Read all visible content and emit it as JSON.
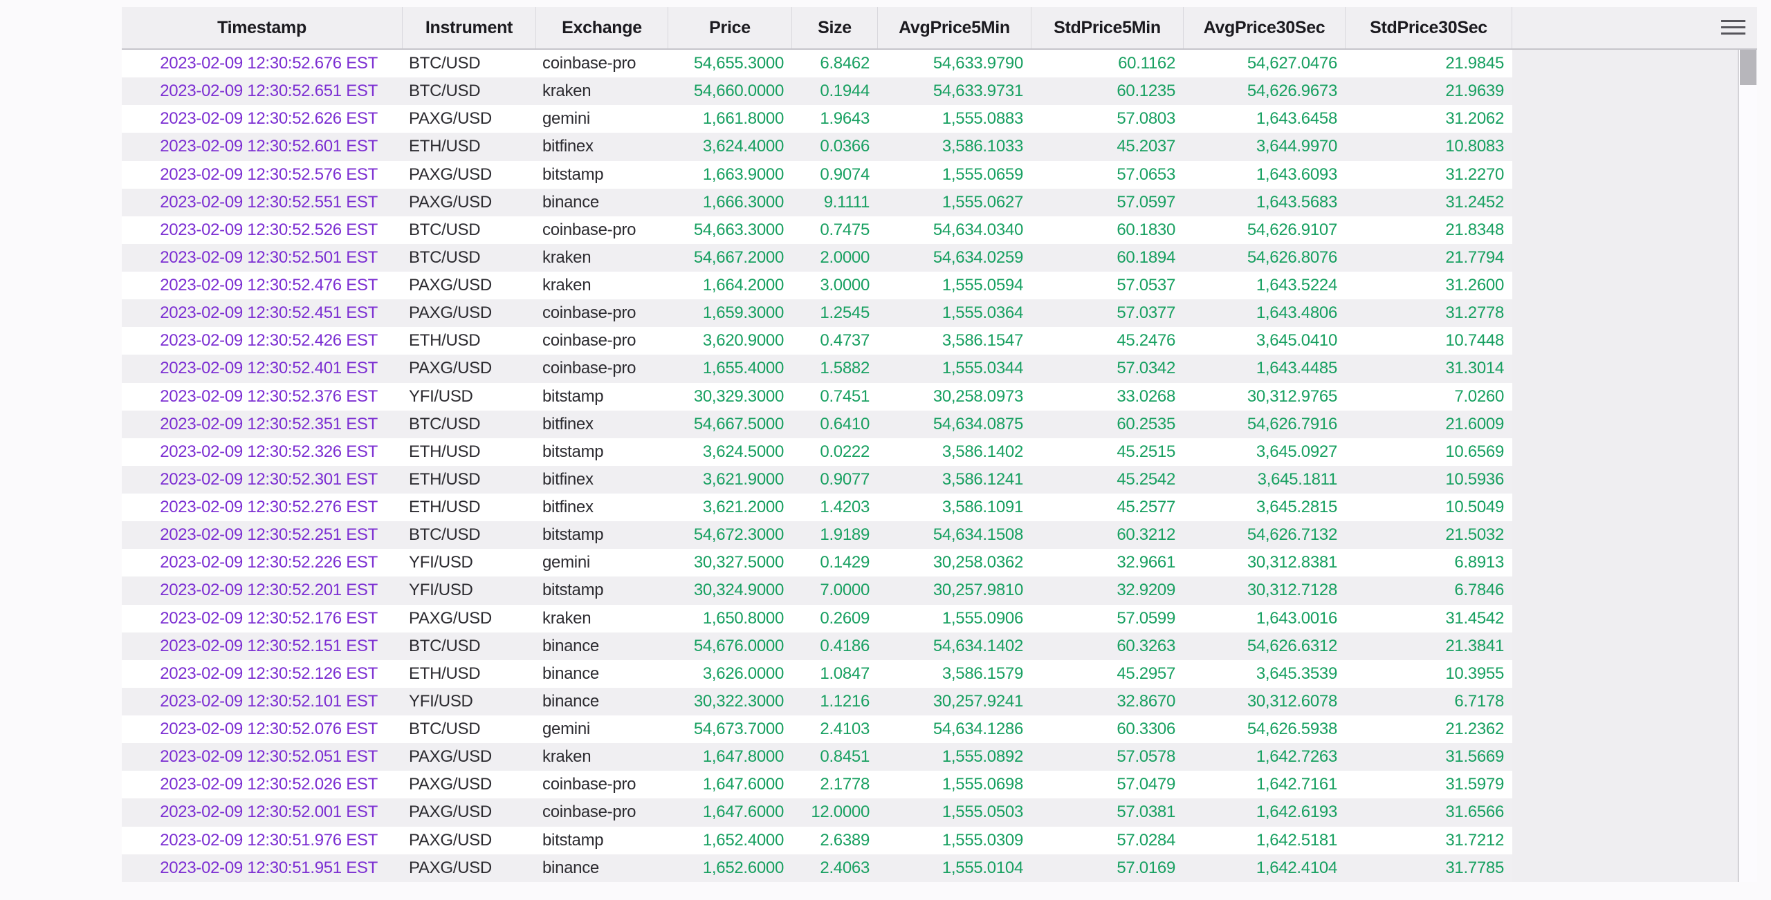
{
  "table": {
    "columns": [
      "Timestamp",
      "Instrument",
      "Exchange",
      "Price",
      "Size",
      "AvgPrice5Min",
      "StdPrice5Min",
      "AvgPrice30Sec",
      "StdPrice30Sec"
    ],
    "rows": [
      [
        "2023-02-09 12:30:52.676 EST",
        "BTC/USD",
        "coinbase-pro",
        "54,655.3000",
        "6.8462",
        "54,633.9790",
        "60.1162",
        "54,627.0476",
        "21.9845"
      ],
      [
        "2023-02-09 12:30:52.651 EST",
        "BTC/USD",
        "kraken",
        "54,660.0000",
        "0.1944",
        "54,633.9731",
        "60.1235",
        "54,626.9673",
        "21.9639"
      ],
      [
        "2023-02-09 12:30:52.626 EST",
        "PAXG/USD",
        "gemini",
        "1,661.8000",
        "1.9643",
        "1,555.0883",
        "57.0803",
        "1,643.6458",
        "31.2062"
      ],
      [
        "2023-02-09 12:30:52.601 EST",
        "ETH/USD",
        "bitfinex",
        "3,624.4000",
        "0.0366",
        "3,586.1033",
        "45.2037",
        "3,644.9970",
        "10.8083"
      ],
      [
        "2023-02-09 12:30:52.576 EST",
        "PAXG/USD",
        "bitstamp",
        "1,663.9000",
        "0.9074",
        "1,555.0659",
        "57.0653",
        "1,643.6093",
        "31.2270"
      ],
      [
        "2023-02-09 12:30:52.551 EST",
        "PAXG/USD",
        "binance",
        "1,666.3000",
        "9.1111",
        "1,555.0627",
        "57.0597",
        "1,643.5683",
        "31.2452"
      ],
      [
        "2023-02-09 12:30:52.526 EST",
        "BTC/USD",
        "coinbase-pro",
        "54,663.3000",
        "0.7475",
        "54,634.0340",
        "60.1830",
        "54,626.9107",
        "21.8348"
      ],
      [
        "2023-02-09 12:30:52.501 EST",
        "BTC/USD",
        "kraken",
        "54,667.2000",
        "2.0000",
        "54,634.0259",
        "60.1894",
        "54,626.8076",
        "21.7794"
      ],
      [
        "2023-02-09 12:30:52.476 EST",
        "PAXG/USD",
        "kraken",
        "1,664.2000",
        "3.0000",
        "1,555.0594",
        "57.0537",
        "1,643.5224",
        "31.2600"
      ],
      [
        "2023-02-09 12:30:52.451 EST",
        "PAXG/USD",
        "coinbase-pro",
        "1,659.3000",
        "1.2545",
        "1,555.0364",
        "57.0377",
        "1,643.4806",
        "31.2778"
      ],
      [
        "2023-02-09 12:30:52.426 EST",
        "ETH/USD",
        "coinbase-pro",
        "3,620.9000",
        "0.4737",
        "3,586.1547",
        "45.2476",
        "3,645.0410",
        "10.7448"
      ],
      [
        "2023-02-09 12:30:52.401 EST",
        "PAXG/USD",
        "coinbase-pro",
        "1,655.4000",
        "1.5882",
        "1,555.0344",
        "57.0342",
        "1,643.4485",
        "31.3014"
      ],
      [
        "2023-02-09 12:30:52.376 EST",
        "YFI/USD",
        "bitstamp",
        "30,329.3000",
        "0.7451",
        "30,258.0973",
        "33.0268",
        "30,312.9765",
        "7.0260"
      ],
      [
        "2023-02-09 12:30:52.351 EST",
        "BTC/USD",
        "bitfinex",
        "54,667.5000",
        "0.6410",
        "54,634.0875",
        "60.2535",
        "54,626.7916",
        "21.6009"
      ],
      [
        "2023-02-09 12:30:52.326 EST",
        "ETH/USD",
        "bitstamp",
        "3,624.5000",
        "0.0222",
        "3,586.1402",
        "45.2515",
        "3,645.0927",
        "10.6569"
      ],
      [
        "2023-02-09 12:30:52.301 EST",
        "ETH/USD",
        "bitfinex",
        "3,621.9000",
        "0.9077",
        "3,586.1241",
        "45.2542",
        "3,645.1811",
        "10.5936"
      ],
      [
        "2023-02-09 12:30:52.276 EST",
        "ETH/USD",
        "bitfinex",
        "3,621.2000",
        "1.4203",
        "3,586.1091",
        "45.2577",
        "3,645.2815",
        "10.5049"
      ],
      [
        "2023-02-09 12:30:52.251 EST",
        "BTC/USD",
        "bitstamp",
        "54,672.3000",
        "1.9189",
        "54,634.1508",
        "60.3212",
        "54,626.7132",
        "21.5032"
      ],
      [
        "2023-02-09 12:30:52.226 EST",
        "YFI/USD",
        "gemini",
        "30,327.5000",
        "0.1429",
        "30,258.0362",
        "32.9661",
        "30,312.8381",
        "6.8913"
      ],
      [
        "2023-02-09 12:30:52.201 EST",
        "YFI/USD",
        "bitstamp",
        "30,324.9000",
        "7.0000",
        "30,257.9810",
        "32.9209",
        "30,312.7128",
        "6.7846"
      ],
      [
        "2023-02-09 12:30:52.176 EST",
        "PAXG/USD",
        "kraken",
        "1,650.8000",
        "0.2609",
        "1,555.0906",
        "57.0599",
        "1,643.0016",
        "31.4542"
      ],
      [
        "2023-02-09 12:30:52.151 EST",
        "BTC/USD",
        "binance",
        "54,676.0000",
        "0.4186",
        "54,634.1402",
        "60.3263",
        "54,626.6312",
        "21.3841"
      ],
      [
        "2023-02-09 12:30:52.126 EST",
        "ETH/USD",
        "binance",
        "3,626.0000",
        "1.0847",
        "3,586.1579",
        "45.2957",
        "3,645.3539",
        "10.3955"
      ],
      [
        "2023-02-09 12:30:52.101 EST",
        "YFI/USD",
        "binance",
        "30,322.3000",
        "1.1216",
        "30,257.9241",
        "32.8670",
        "30,312.6078",
        "6.7178"
      ],
      [
        "2023-02-09 12:30:52.076 EST",
        "BTC/USD",
        "gemini",
        "54,673.7000",
        "2.4103",
        "54,634.1286",
        "60.3306",
        "54,626.5938",
        "21.2362"
      ],
      [
        "2023-02-09 12:30:52.051 EST",
        "PAXG/USD",
        "kraken",
        "1,647.8000",
        "0.8451",
        "1,555.0892",
        "57.0578",
        "1,642.7263",
        "31.5669"
      ],
      [
        "2023-02-09 12:30:52.026 EST",
        "PAXG/USD",
        "coinbase-pro",
        "1,647.6000",
        "2.1778",
        "1,555.0698",
        "57.0479",
        "1,642.7161",
        "31.5979"
      ],
      [
        "2023-02-09 12:30:52.001 EST",
        "PAXG/USD",
        "coinbase-pro",
        "1,647.6000",
        "12.0000",
        "1,555.0503",
        "57.0381",
        "1,642.6193",
        "31.6566"
      ],
      [
        "2023-02-09 12:30:51.976 EST",
        "PAXG/USD",
        "bitstamp",
        "1,652.4000",
        "2.6389",
        "1,555.0309",
        "57.0284",
        "1,642.5181",
        "31.7212"
      ],
      [
        "2023-02-09 12:30:51.951 EST",
        "PAXG/USD",
        "binance",
        "1,652.6000",
        "2.4063",
        "1,555.0104",
        "57.0169",
        "1,642.4104",
        "31.7785"
      ]
    ]
  },
  "controls": {
    "menu_icon": "hamburger-menu"
  },
  "colors": {
    "timestamp_text": "#7c2fd2",
    "number_text": "#18a061",
    "string_text": "#2c2b30",
    "header_bg": "#f0eff2",
    "row_stripe_bg": "#f0eff2",
    "row_bg": "#ffffff",
    "page_bg": "#fbfafc",
    "scroll_thumb": "#b7b6bb"
  }
}
